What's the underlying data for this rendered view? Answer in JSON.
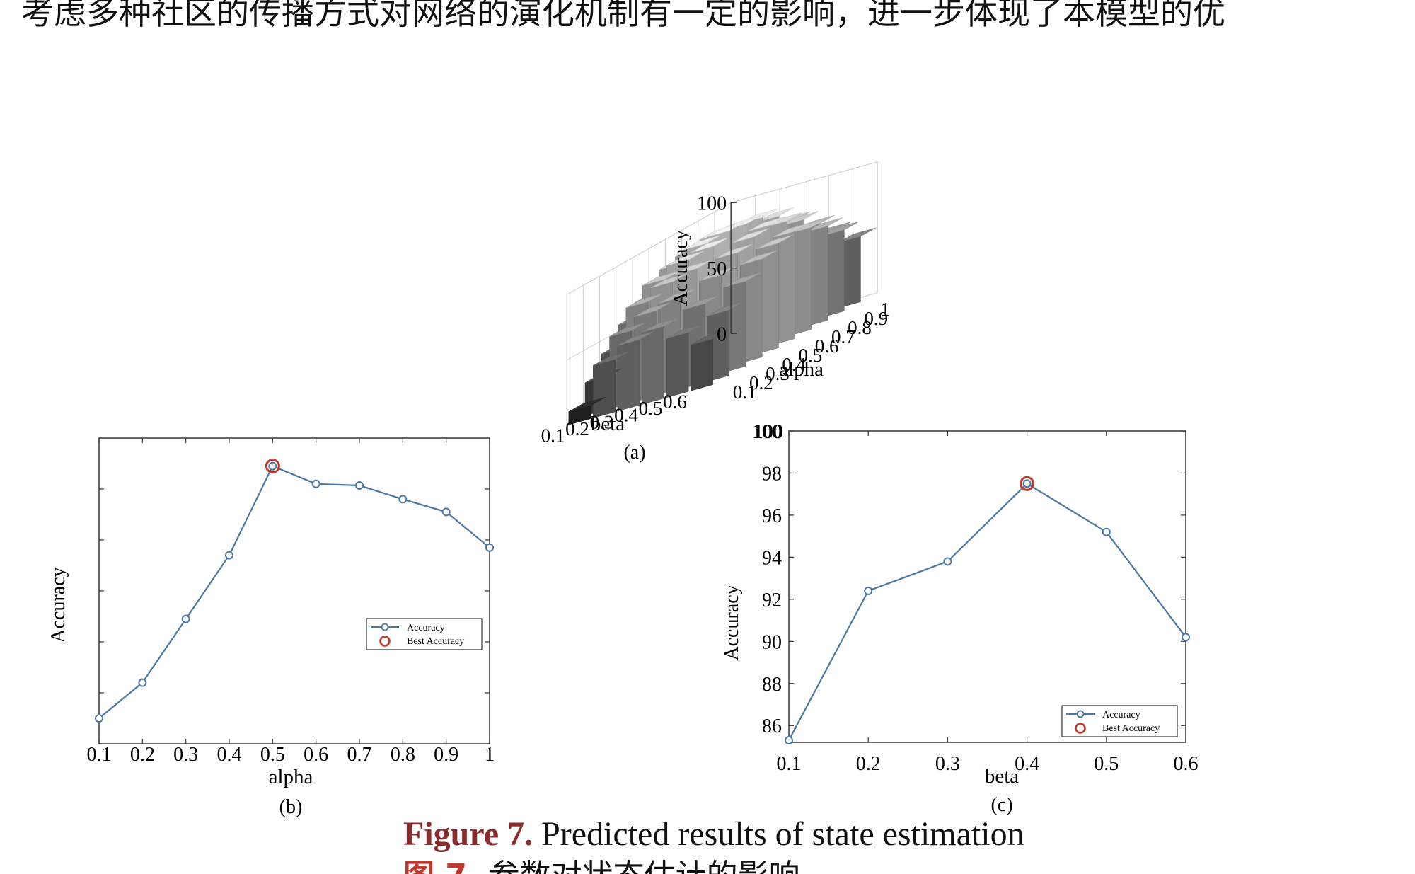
{
  "page": {
    "top_text": "考虑多种社区的传播方式对网络的演化机制有一定的影响，进一步体现了本模型的优",
    "caption_en_label": "Figure 7.",
    "caption_en_text": " Predicted results of state estimation",
    "caption_zh_label": "图 7.",
    "caption_zh_text": " 参数对状态估计的影响"
  },
  "colors": {
    "series": "#4a78a4",
    "best_marker": "#c0392b"
  },
  "chart_data": [
    {
      "panel": "(a)",
      "type": "bar3d",
      "zlabel": "Accuracy",
      "xlabel": "beta",
      "ylabel": "alpha",
      "zticks": [
        "0",
        "50",
        "100"
      ],
      "zlim": [
        0,
        100
      ],
      "beta_ticks": [
        "0.1",
        "0.2",
        "0.3",
        "0.4",
        "0.5",
        "0.6"
      ],
      "alpha_ticks": [
        "0.1",
        "0.2",
        "0.3",
        "0.4",
        "0.5",
        "0.6",
        "0.7",
        "0.8",
        "0.9",
        "1"
      ],
      "beta": [
        0.1,
        0.2,
        0.3,
        0.4,
        0.5,
        0.6
      ],
      "alpha": [
        0.1,
        0.2,
        0.3,
        0.4,
        0.5,
        0.6,
        0.7,
        0.8,
        0.9,
        1.0
      ],
      "values": [
        [
          10,
          25,
          40,
          55,
          65,
          70,
          68,
          62,
          55,
          45
        ],
        [
          40,
          55,
          70,
          80,
          85,
          88,
          85,
          80,
          70,
          60
        ],
        [
          50,
          65,
          80,
          90,
          95,
          96,
          94,
          88,
          78,
          65
        ],
        [
          55,
          70,
          85,
          95,
          100,
          98,
          96,
          90,
          80,
          68
        ],
        [
          45,
          60,
          75,
          85,
          90,
          92,
          88,
          82,
          72,
          60
        ],
        [
          35,
          50,
          65,
          75,
          80,
          82,
          78,
          72,
          62,
          50
        ]
      ],
      "grid": true
    },
    {
      "panel": "(b)",
      "type": "line",
      "xlabel": "alpha",
      "ylabel": "Accuracy",
      "x": [
        0.1,
        0.2,
        0.3,
        0.4,
        0.5,
        0.6,
        0.7,
        0.8,
        0.9,
        1.0
      ],
      "x_ticks": [
        "0.1",
        "0.2",
        "0.3",
        "0.4",
        "0.5",
        "0.6",
        "0.7",
        "0.8",
        "0.9",
        "1"
      ],
      "series": [
        {
          "name": "Accuracy",
          "values": [
            0.05,
            0.12,
            0.245,
            0.37,
            0.545,
            0.51,
            0.507,
            0.48,
            0.455,
            0.385
          ]
        }
      ],
      "best": {
        "name": "Best Accuracy",
        "x": 0.5,
        "y": 0.545
      },
      "ylim": [
        0,
        0.6
      ],
      "y_ticks_labeled": false,
      "legend": "lower-right",
      "grid": false
    },
    {
      "panel": "(c)",
      "type": "line",
      "xlabel": "beta",
      "ylabel": "Accuracy",
      "x": [
        0.1,
        0.2,
        0.3,
        0.4,
        0.5,
        0.6
      ],
      "x_ticks": [
        "0.1",
        "0.2",
        "0.3",
        "0.4",
        "0.5",
        "0.6"
      ],
      "y_ticks": [
        "86",
        "88",
        "90",
        "92",
        "94",
        "96",
        "98",
        "100"
      ],
      "series": [
        {
          "name": "Accuracy",
          "values": [
            85.3,
            92.4,
            93.8,
            97.5,
            95.2,
            90.2
          ]
        }
      ],
      "best": {
        "name": "Best Accuracy",
        "x": 0.4,
        "y": 97.5
      },
      "ylim": [
        85.2,
        100
      ],
      "legend": "lower-right",
      "grid": false
    }
  ]
}
